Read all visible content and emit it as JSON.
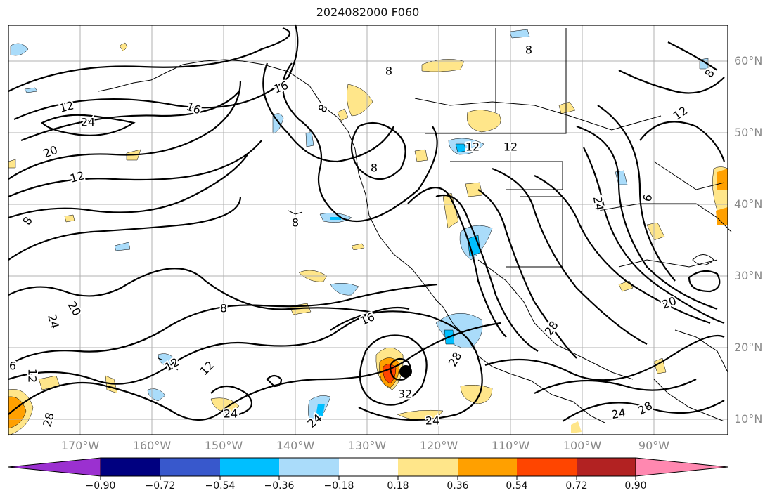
{
  "title": "2024082000 F060",
  "lat_labels": [
    "60°N",
    "50°N",
    "40°N",
    "30°N",
    "20°N",
    "10°N"
  ],
  "lon_labels": [
    "170°W",
    "160°W",
    "150°W",
    "140°W",
    "130°W",
    "120°W",
    "110°W",
    "100°W",
    "90°W"
  ],
  "colorbar": {
    "tick_labels": [
      "−0.90",
      "−0.72",
      "−0.54",
      "−0.36",
      "−0.18",
      "0.18",
      "0.36",
      "0.54",
      "0.72",
      "0.90"
    ],
    "colors": [
      "#9b30d0",
      "#000080",
      "#3858cc",
      "#00bfff",
      "#aadcfa",
      "#ffffff",
      "#ffe68a",
      "#ffa000",
      "#ff4500",
      "#b22222",
      "#ff88b0"
    ]
  },
  "contour_labels": [
    "8",
    "8",
    "8",
    "8",
    "8",
    "8",
    "8",
    "8",
    "12",
    "12",
    "12",
    "12",
    "12",
    "12",
    "12",
    "16",
    "16",
    "16",
    "20",
    "20",
    "20",
    "24",
    "24",
    "24",
    "24",
    "24",
    "24",
    "28",
    "28",
    "28",
    "28",
    "32",
    "6",
    "6",
    "12",
    "24"
  ],
  "map_style": {
    "contour_color": "#000000",
    "grid_color": "#b0b0b0",
    "coast_color": "#000000"
  }
}
